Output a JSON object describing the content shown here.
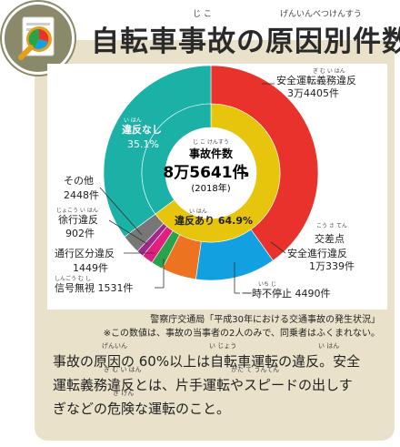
{
  "title": {
    "text": "自転車事故の原因別件数",
    "ruby": [
      {
        "text": "じ こ"
      },
      {
        "text": "げんいんべつけんすう"
      }
    ]
  },
  "center": {
    "ruby": "じ こ けんすう",
    "label": "事故件数",
    "total": "8万5641件",
    "arrow": "↘",
    "year": "(2018年)"
  },
  "labels": {
    "violation_safe_duty": {
      "ruby": "ぎ む い はん",
      "line1": "安全運転義務違反",
      "line2": "3万4405件"
    },
    "violation_crossing": {
      "ruby": "こう さ てん",
      "line1": "交差点",
      "line2": "安全進行違反",
      "line3": "1万339件"
    },
    "violation_stop": {
      "ruby": "いち じ",
      "line1": "一時不停止 4490件"
    },
    "violation_signal": {
      "ruby": "しんごう む し",
      "line1": "信号無視 1531件"
    },
    "violation_lane": {
      "ruby": "",
      "line1": "通行区分違反",
      "line2": "1449件"
    },
    "violation_slow": {
      "ruby": "じょこう い はん",
      "line1": "徐行違反",
      "line2": "902件"
    },
    "violation_other": {
      "ruby": "",
      "line1": "その他",
      "line2": "2448件"
    },
    "no_violation": {
      "ruby": "い はん",
      "line1": "違反なし",
      "line2": "35.1%"
    },
    "with_violation": {
      "ruby": "い はん",
      "line1": "違反あり 64.9%"
    }
  },
  "source": {
    "line1": "警察庁交通局「平成30年における交通事故の発生状況」",
    "line2": "※この数値は、事故の当事者の2人のみで、同乗者はふくまれない。"
  },
  "description": {
    "p1": "事故の原因の 60%以上は自転車運転の違反。安全",
    "p2": "運転義務違反とは、片手運転やスピードの出しす",
    "p3": "ぎなどの危険な運転のこと。",
    "ruby_genin": "げんいん",
    "ruby_ijou": "い じょう",
    "ruby_ihan": "い はん",
    "ruby_gimuihan": "ぎ む い はん",
    "ruby_katate": "かた て うんてん",
    "ruby_kiken": "き けん"
  },
  "colors": {
    "safe_duty": "#e8322b",
    "crossing": "#12a0e0",
    "stop": "#ee7320",
    "signal": "#2aa24a",
    "lane": "#e21f7f",
    "slow": "#9b2b8a",
    "other": "#777777",
    "no_violation": "#1bb1a7",
    "with_violation": "#e7c50c",
    "panel": "#e9e1c9"
  },
  "chart_data": {
    "type": "pie",
    "title": "自転車事故の原因別件数",
    "total": 85641,
    "year": 2018,
    "outer_ring": [
      {
        "name": "安全運転義務違反",
        "value": 34405
      },
      {
        "name": "交差点安全進行違反",
        "value": 10339
      },
      {
        "name": "一時不停止",
        "value": 4490
      },
      {
        "name": "信号無視",
        "value": 1531
      },
      {
        "name": "通行区分違反",
        "value": 1449
      },
      {
        "name": "徐行違反",
        "value": 902
      },
      {
        "name": "その他",
        "value": 2448
      },
      {
        "name": "違反なし",
        "value": 30077
      }
    ],
    "inner_ring": [
      {
        "name": "違反あり",
        "value": 64.9
      },
      {
        "name": "違反なし",
        "value": 35.1
      }
    ]
  }
}
